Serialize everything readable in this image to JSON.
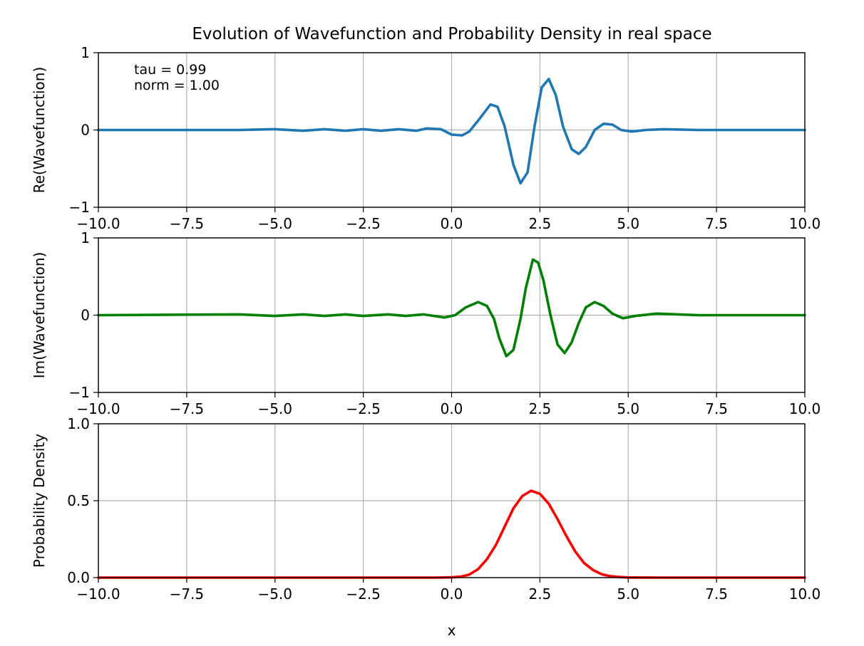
{
  "title": "Evolution of Wavefunction and Probability Density in real space",
  "chart_data": [
    {
      "type": "line",
      "name": "re-wavefunction-panel",
      "title": "",
      "xlabel": "",
      "ylabel": "Re(Wavefunction)",
      "xlim": [
        -10,
        10
      ],
      "ylim": [
        -1,
        1
      ],
      "xticks": [
        -10,
        -7.5,
        -5,
        -2.5,
        0,
        2.5,
        5,
        7.5,
        10
      ],
      "xtick_labels": [
        "−10.0",
        "−7.5",
        "−5.0",
        "−2.5",
        "0.0",
        "2.5",
        "5.0",
        "7.5",
        "10.0"
      ],
      "yticks": [
        -1,
        0,
        1
      ],
      "ytick_labels": [
        "−1",
        "0",
        "1"
      ],
      "grid": true,
      "color": "#1f77b4",
      "x": [
        -10,
        -6,
        -5,
        -4.2,
        -3.6,
        -3,
        -2.5,
        -2,
        -1.5,
        -1,
        -0.7,
        -0.3,
        0,
        0.3,
        0.5,
        0.8,
        1.1,
        1.3,
        1.5,
        1.75,
        1.95,
        2.15,
        2.35,
        2.55,
        2.75,
        2.95,
        3.15,
        3.4,
        3.6,
        3.8,
        4.05,
        4.3,
        4.55,
        4.8,
        5.1,
        5.5,
        6,
        7,
        8,
        10
      ],
      "values": [
        0,
        0,
        0.01,
        -0.01,
        0.01,
        -0.01,
        0.01,
        -0.01,
        0.01,
        -0.01,
        0.02,
        0.01,
        -0.06,
        -0.07,
        -0.02,
        0.15,
        0.33,
        0.3,
        0.05,
        -0.45,
        -0.69,
        -0.55,
        0.05,
        0.55,
        0.66,
        0.45,
        0.05,
        -0.25,
        -0.31,
        -0.22,
        0.0,
        0.08,
        0.07,
        0.0,
        -0.02,
        0.0,
        0.01,
        0,
        0,
        0
      ],
      "annotations": [
        "tau = 0.99",
        "norm = 1.00"
      ]
    },
    {
      "type": "line",
      "name": "im-wavefunction-panel",
      "title": "",
      "xlabel": "",
      "ylabel": "Im(Wavefunction)",
      "xlim": [
        -10,
        10
      ],
      "ylim": [
        -1,
        1
      ],
      "xticks": [
        -10,
        -7.5,
        -5,
        -2.5,
        0,
        2.5,
        5,
        7.5,
        10
      ],
      "xtick_labels": [
        "−10.0",
        "−7.5",
        "−5.0",
        "−2.5",
        "0.0",
        "2.5",
        "5.0",
        "7.5",
        "10.0"
      ],
      "yticks": [
        -1,
        0,
        1
      ],
      "ytick_labels": [
        "−1",
        "0",
        "1"
      ],
      "grid": true,
      "color": "#008000",
      "x": [
        -10,
        -6,
        -5,
        -4.2,
        -3.6,
        -3,
        -2.5,
        -1.8,
        -1.3,
        -0.8,
        -0.5,
        -0.2,
        0.1,
        0.4,
        0.75,
        1.0,
        1.2,
        1.35,
        1.55,
        1.75,
        1.95,
        2.1,
        2.3,
        2.45,
        2.6,
        2.8,
        3.0,
        3.2,
        3.4,
        3.6,
        3.8,
        4.05,
        4.3,
        4.55,
        4.85,
        5.2,
        5.8,
        7,
        8,
        10
      ],
      "values": [
        0,
        0.01,
        -0.01,
        0.01,
        -0.01,
        0.01,
        -0.01,
        0.01,
        -0.01,
        0.01,
        -0.01,
        -0.03,
        0.0,
        0.1,
        0.17,
        0.12,
        -0.05,
        -0.3,
        -0.53,
        -0.45,
        -0.05,
        0.35,
        0.72,
        0.68,
        0.45,
        0.0,
        -0.38,
        -0.49,
        -0.35,
        -0.1,
        0.1,
        0.17,
        0.12,
        0.02,
        -0.04,
        -0.01,
        0.02,
        0,
        0,
        0
      ]
    },
    {
      "type": "line",
      "name": "probability-density-panel",
      "title": "",
      "xlabel": "x",
      "ylabel": "Probability Density",
      "xlim": [
        -10,
        10
      ],
      "ylim": [
        0,
        1
      ],
      "xticks": [
        -10,
        -7.5,
        -5,
        -2.5,
        0,
        2.5,
        5,
        7.5,
        10
      ],
      "xtick_labels": [
        "−10.0",
        "−7.5",
        "−5.0",
        "−2.5",
        "0.0",
        "2.5",
        "5.0",
        "7.5",
        "10.0"
      ],
      "yticks": [
        0,
        0.5,
        1
      ],
      "ytick_labels": [
        "0.0",
        "0.5",
        "1.0"
      ],
      "grid": true,
      "color": "#ff0000",
      "x": [
        -10,
        -2,
        -1,
        -0.5,
        0,
        0.25,
        0.5,
        0.75,
        1.0,
        1.25,
        1.5,
        1.75,
        2.0,
        2.25,
        2.5,
        2.75,
        3.0,
        3.25,
        3.5,
        3.75,
        4.0,
        4.25,
        4.5,
        4.75,
        5.0,
        6,
        7,
        10
      ],
      "values": [
        0,
        0,
        0,
        0,
        0.002,
        0.006,
        0.02,
        0.055,
        0.12,
        0.21,
        0.33,
        0.45,
        0.53,
        0.565,
        0.545,
        0.48,
        0.38,
        0.27,
        0.17,
        0.095,
        0.05,
        0.022,
        0.009,
        0.004,
        0.001,
        0,
        0,
        0
      ]
    }
  ]
}
